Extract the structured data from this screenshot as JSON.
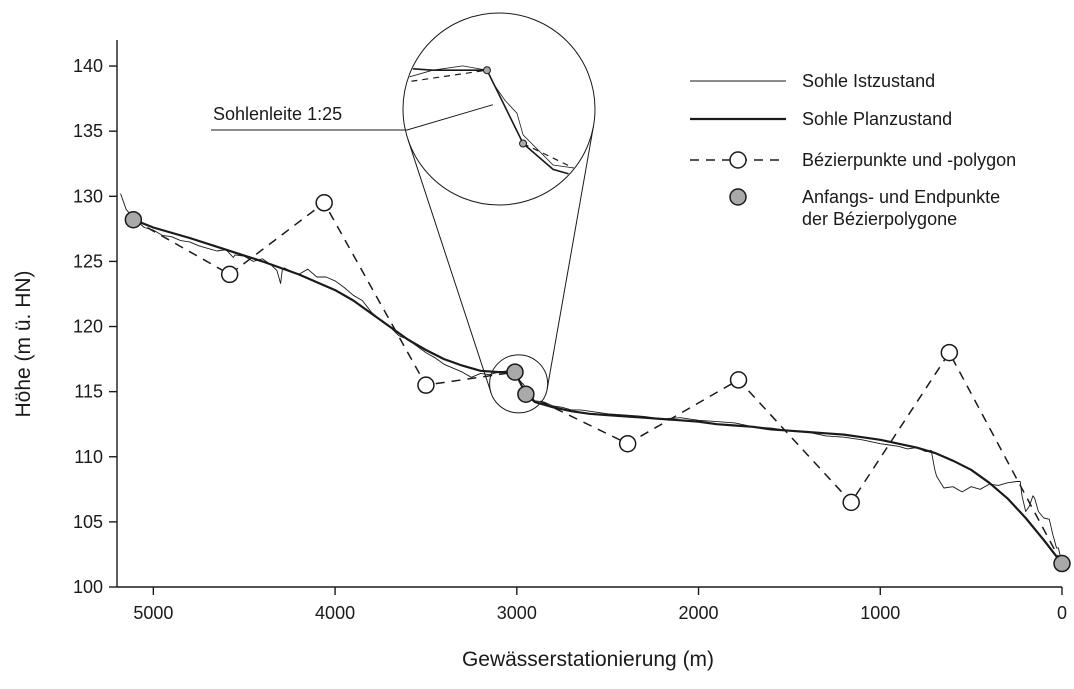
{
  "chart_data": {
    "type": "line",
    "xlabel": "Gewässerstationierung (m)",
    "ylabel": "Höhe (m ü. HN)",
    "xlim": [
      5200,
      0
    ],
    "ylim": [
      100,
      142
    ],
    "x_ticks": [
      5000,
      4000,
      3000,
      2000,
      1000,
      0
    ],
    "y_ticks": [
      100,
      105,
      110,
      115,
      120,
      125,
      130,
      135,
      140
    ],
    "grid": false,
    "legend_position": "top-right",
    "legend": [
      {
        "key": "ist",
        "label": "Sohle Istzustand"
      },
      {
        "key": "plan",
        "label": "Sohle Planzustand"
      },
      {
        "key": "bezier",
        "label": "Bézierpunkte und -polygon"
      },
      {
        "key": "endpoints",
        "label_lines": [
          "Anfangs- und Endpunkte",
          "der Bézierpolygone"
        ]
      }
    ],
    "annotation": {
      "text": "Sohlenleite 1:25",
      "x": 3000,
      "y": 115.7
    },
    "series": [
      {
        "key": "ist",
        "name": "Sohle Istzustand",
        "style": "thin",
        "x": [
          5180,
          5150,
          5120,
          5100,
          5050,
          5000,
          4950,
          4900,
          4850,
          4800,
          4750,
          4700,
          4650,
          4600,
          4560,
          4550,
          4500,
          4450,
          4400,
          4350,
          4320,
          4300,
          4290,
          4280,
          4250,
          4200,
          4150,
          4100,
          4050,
          4000,
          3950,
          3900,
          3850,
          3800,
          3750,
          3700,
          3650,
          3600,
          3550,
          3500,
          3450,
          3400,
          3350,
          3300,
          3250,
          3200,
          3150,
          3100,
          3050,
          3010,
          3000,
          2980,
          2960,
          2950,
          2900,
          2850,
          2800,
          2750,
          2700,
          2650,
          2600,
          2500,
          2400,
          2300,
          2200,
          2100,
          2000,
          1900,
          1800,
          1700,
          1600,
          1500,
          1400,
          1300,
          1200,
          1100,
          1000,
          950,
          900,
          850,
          800,
          750,
          720,
          700,
          690,
          650,
          600,
          550,
          500,
          450,
          400,
          350,
          300,
          250,
          230,
          220,
          200,
          180,
          160,
          150,
          130,
          100,
          70,
          50,
          30,
          20,
          0
        ],
        "y": [
          130.2,
          129.0,
          128.5,
          128.2,
          127.6,
          127.4,
          127.0,
          126.9,
          126.6,
          126.5,
          126.2,
          126.0,
          125.8,
          125.9,
          125.3,
          125.5,
          125.4,
          125.0,
          125.2,
          124.7,
          124.3,
          123.3,
          124.4,
          124.5,
          124.3,
          124.0,
          124.4,
          123.8,
          123.8,
          123.5,
          123.0,
          122.4,
          122.0,
          121.1,
          120.5,
          120.0,
          119.3,
          119.0,
          118.5,
          118.0,
          117.6,
          117.1,
          116.8,
          116.5,
          116.1,
          116.4,
          116.3,
          116.5,
          116.6,
          116.5,
          116.2,
          115.8,
          115.5,
          115.0,
          114.3,
          114.2,
          113.9,
          113.8,
          113.6,
          113.6,
          113.5,
          113.3,
          113.2,
          113.1,
          112.9,
          113.0,
          112.8,
          112.7,
          112.6,
          112.3,
          112.2,
          112.0,
          111.9,
          111.6,
          111.5,
          111.3,
          111.0,
          110.9,
          110.8,
          110.6,
          110.7,
          110.4,
          110.5,
          109.0,
          108.5,
          107.6,
          107.7,
          107.3,
          107.7,
          107.5,
          107.9,
          107.8,
          108.0,
          108.1,
          108.1,
          107.0,
          105.8,
          106.2,
          107.0,
          106.8,
          105.8,
          105.3,
          105.2,
          104.0,
          103.0,
          103.0,
          101.8
        ]
      },
      {
        "key": "plan",
        "name": "Sohle Planzustand",
        "style": "thick",
        "x": [
          5110,
          5000,
          4800,
          4600,
          4400,
          4200,
          4000,
          3900,
          3800,
          3700,
          3600,
          3500,
          3400,
          3300,
          3200,
          3100,
          3010,
          2950,
          2900,
          2800,
          2700,
          2600,
          2500,
          2400,
          2300,
          2200,
          2100,
          2000,
          1900,
          1800,
          1700,
          1600,
          1500,
          1400,
          1300,
          1200,
          1100,
          1000,
          900,
          800,
          700,
          600,
          500,
          400,
          300,
          200,
          100,
          0
        ],
        "y": [
          128.2,
          127.6,
          126.8,
          125.9,
          125.0,
          124.0,
          122.8,
          122.0,
          121.0,
          120.0,
          119.0,
          118.2,
          117.5,
          117.0,
          116.6,
          116.5,
          116.5,
          114.8,
          114.2,
          113.8,
          113.5,
          113.3,
          113.2,
          113.1,
          113.0,
          112.9,
          112.8,
          112.7,
          112.5,
          112.4,
          112.3,
          112.1,
          112.0,
          111.9,
          111.8,
          111.7,
          111.5,
          111.3,
          111.0,
          110.7,
          110.3,
          109.7,
          109.0,
          108.0,
          106.8,
          105.3,
          103.6,
          101.8
        ]
      },
      {
        "key": "bezier",
        "name": "Bézierpunkte und -polygon",
        "style": "dashed-open-circles",
        "x": [
          5110,
          4580,
          4060,
          3500,
          3010
        ],
        "y": [
          128.2,
          124.0,
          129.5,
          115.5,
          116.5
        ],
        "x2": [
          2950,
          2390,
          1780,
          1160,
          620,
          0
        ],
        "y2": [
          114.8,
          111.0,
          115.9,
          106.5,
          118.0,
          101.8
        ]
      },
      {
        "key": "endpoints",
        "name": "Anfangs- und Endpunkte der Bézierpolygone",
        "style": "filled-gray-circles",
        "x": [
          5110,
          3010,
          2950,
          0
        ],
        "y": [
          128.2,
          116.5,
          114.8,
          101.8
        ]
      }
    ]
  }
}
